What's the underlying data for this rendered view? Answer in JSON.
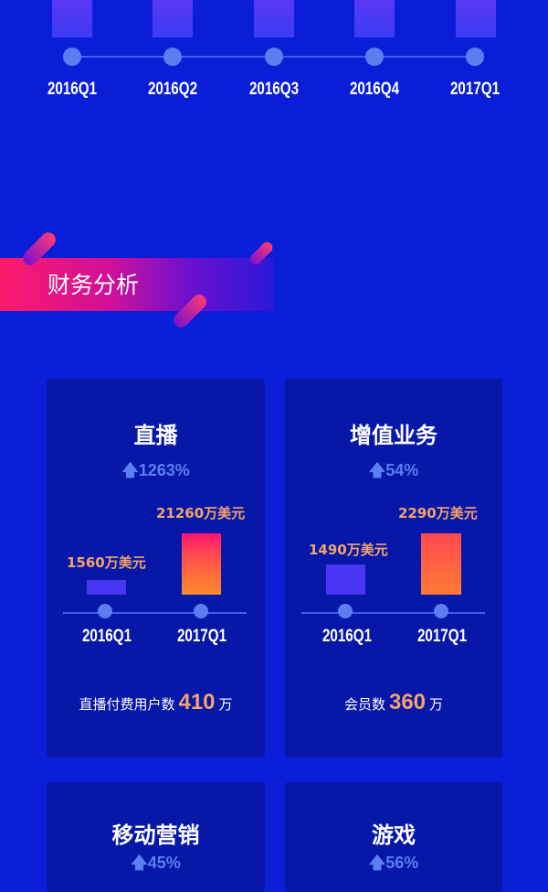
{
  "timeline": {
    "quarters": [
      "2016Q1",
      "2016Q2",
      "2016Q3",
      "2016Q4",
      "2017Q1"
    ]
  },
  "section": {
    "title": "财务分析"
  },
  "cards": [
    {
      "title": "直播",
      "growth": "1263%",
      "q1_label": "2016Q1",
      "q2_label": "2017Q1",
      "v1": "1560万美元",
      "v2": "21260万美元",
      "foot_prefix": "直播付费用户数",
      "foot_num": "410",
      "foot_unit": "万"
    },
    {
      "title": "增值业务",
      "growth": "54%",
      "q1_label": "2016Q1",
      "q2_label": "2017Q1",
      "v1": "1490万美元",
      "v2": "2290万美元",
      "foot_prefix": "会员数",
      "foot_num": "360",
      "foot_unit": "万"
    },
    {
      "title": "移动营销",
      "growth": "45%"
    },
    {
      "title": "游戏",
      "growth": "56%"
    }
  ],
  "colors": {
    "background": "#0a1ed8",
    "card": "#0717a8",
    "accent": "#f4a46a",
    "growth": "#5b7ff2"
  }
}
